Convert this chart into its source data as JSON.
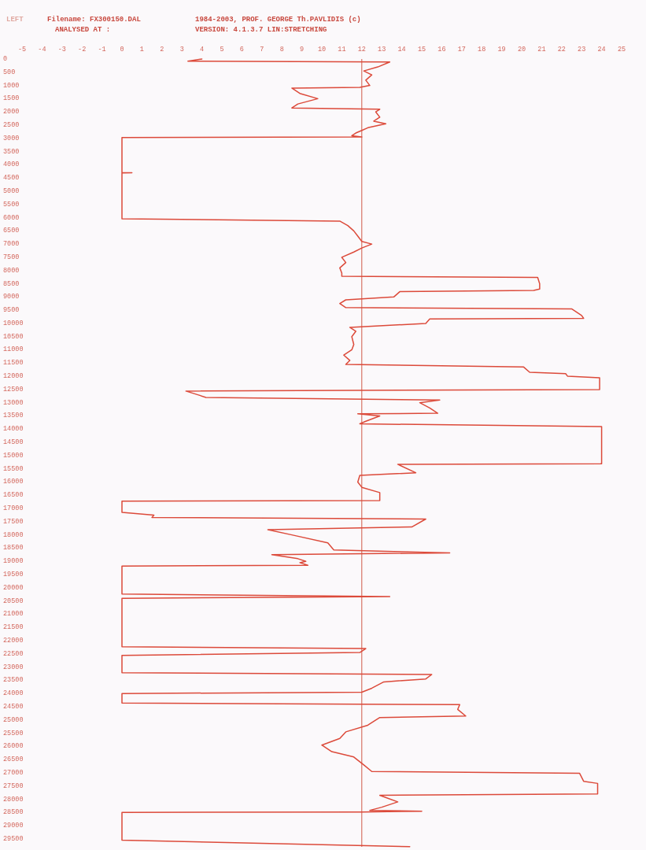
{
  "chart_data": {
    "type": "line",
    "annotations": [
      "LEFT",
      "Filename: FX300150.DAL",
      "1984-2003,  PROF. GEORGE Th.PAVLIDIS (c)",
      "ANALYSED AT :",
      "VERSION: 4.1.3.7 LIN:STRETCHING"
    ],
    "series": [
      {
        "color": "#dc4a3a",
        "x": [
          4.0,
          3.3,
          13.4,
          12.8,
          12.1,
          12.5,
          12.2,
          12.4,
          11.9,
          8.5,
          8.9,
          9.8,
          8.8,
          8.5,
          12.9,
          12.7,
          12.9,
          12.6,
          13.2,
          12.3,
          12.0,
          11.7,
          11.5,
          12.0,
          0,
          0,
          0.5,
          0,
          0,
          10.9,
          11.3,
          11.6,
          11.8,
          12.0,
          12.5,
          12.0,
          11.6,
          11.0,
          11.2,
          10.9,
          11.0,
          11.0,
          20.8,
          20.9,
          20.9,
          20.6,
          13.9,
          13.6,
          11.2,
          10.9,
          11.2,
          22.5,
          23.0,
          23.1,
          15.4,
          15.2,
          11.4,
          11.7,
          11.5,
          11.6,
          11.5,
          11.1,
          11.4,
          11.2,
          20.1,
          20.4,
          22.2,
          22.3,
          23.9,
          23.9,
          3.2,
          3.8,
          4.2,
          15.9,
          14.9,
          15.4,
          15.8,
          11.8,
          12.9,
          12.2,
          11.9,
          24.0,
          24.0,
          13.8,
          14.7,
          11.9,
          11.8,
          12.0,
          12.9,
          12.9,
          0,
          0,
          1.6,
          1.5,
          15.2,
          14.5,
          7.3,
          8.5,
          10.3,
          10.6,
          16.4,
          7.5,
          8.8,
          9.2,
          8.9,
          9.3,
          0,
          0,
          13.4,
          0,
          0,
          12.2,
          11.9,
          0,
          0,
          15.5,
          15.2,
          13.1,
          12.5,
          12.0,
          0,
          0,
          16.9,
          16.8,
          17.2,
          12.9,
          12.3,
          11.2,
          10.9,
          10.0,
          10.5,
          11.6,
          12.1,
          12.5,
          22.9,
          23.1,
          23.8,
          23.8,
          12.9,
          13.8,
          13.0,
          12.4,
          15.0,
          12.0,
          0,
          0,
          14.4
        ],
        "values": [
          0,
          80,
          110,
          300,
          450,
          600,
          800,
          1000,
          1070,
          1100,
          1300,
          1500,
          1700,
          1850,
          1900,
          2000,
          2200,
          2350,
          2450,
          2600,
          2700,
          2800,
          2900,
          2950,
          2970,
          4300,
          4300,
          4310,
          6040,
          6130,
          6300,
          6500,
          6700,
          6900,
          7000,
          7150,
          7300,
          7500,
          7700,
          7900,
          8100,
          8220,
          8260,
          8500,
          8700,
          8750,
          8800,
          9000,
          9110,
          9250,
          9400,
          9450,
          9700,
          9810,
          9830,
          10000,
          10150,
          10300,
          10500,
          10800,
          11000,
          11200,
          11400,
          11550,
          11650,
          11850,
          11900,
          12000,
          12060,
          12500,
          12560,
          12700,
          12800,
          12900,
          13000,
          13200,
          13400,
          13420,
          13500,
          13700,
          13800,
          13900,
          15310,
          15330,
          15650,
          15750,
          16000,
          16200,
          16400,
          16700,
          16720,
          17150,
          17250,
          17340,
          17400,
          17700,
          17800,
          18000,
          18300,
          18570,
          18680,
          18750,
          18900,
          19000,
          19050,
          19150,
          19180,
          20240,
          20330,
          20400,
          22230,
          22300,
          22450,
          22560,
          23210,
          23280,
          23450,
          23560,
          23800,
          23950,
          24000,
          24360,
          24420,
          24600,
          24850,
          24910,
          25200,
          25450,
          25700,
          25950,
          26200,
          26400,
          26700,
          26950,
          27020,
          27320,
          27400,
          27800,
          27850,
          28100,
          28300,
          28420,
          28450,
          28480,
          28500,
          29550,
          29790
        ]
      }
    ],
    "xlim": [
      -5,
      25
    ],
    "xticks": [
      -5,
      -4,
      -3,
      -2,
      -1,
      0,
      1,
      2,
      3,
      4,
      5,
      6,
      7,
      8,
      9,
      10,
      11,
      12,
      13,
      14,
      15,
      16,
      17,
      18,
      19,
      20,
      21,
      22,
      23,
      24,
      25
    ],
    "ylim": [
      29800,
      0
    ],
    "yticks": [
      0,
      500,
      1000,
      1500,
      2000,
      2500,
      3000,
      3500,
      4000,
      4500,
      5000,
      5500,
      6000,
      6500,
      7000,
      7500,
      8000,
      8500,
      9000,
      9500,
      10000,
      10500,
      11000,
      11500,
      12000,
      12500,
      13000,
      13500,
      14000,
      14500,
      15000,
      15500,
      16000,
      16500,
      17000,
      17500,
      18000,
      18500,
      19000,
      19500,
      20000,
      20500,
      21000,
      21500,
      22000,
      22500,
      23000,
      23500,
      24000,
      24500,
      25000,
      25500,
      26000,
      26500,
      27000,
      27500,
      28000,
      28500,
      29000,
      29500
    ],
    "ref_lines": [
      {
        "axis": "x",
        "value": 12,
        "color": "#d05a48"
      }
    ],
    "line_style": "solid"
  }
}
